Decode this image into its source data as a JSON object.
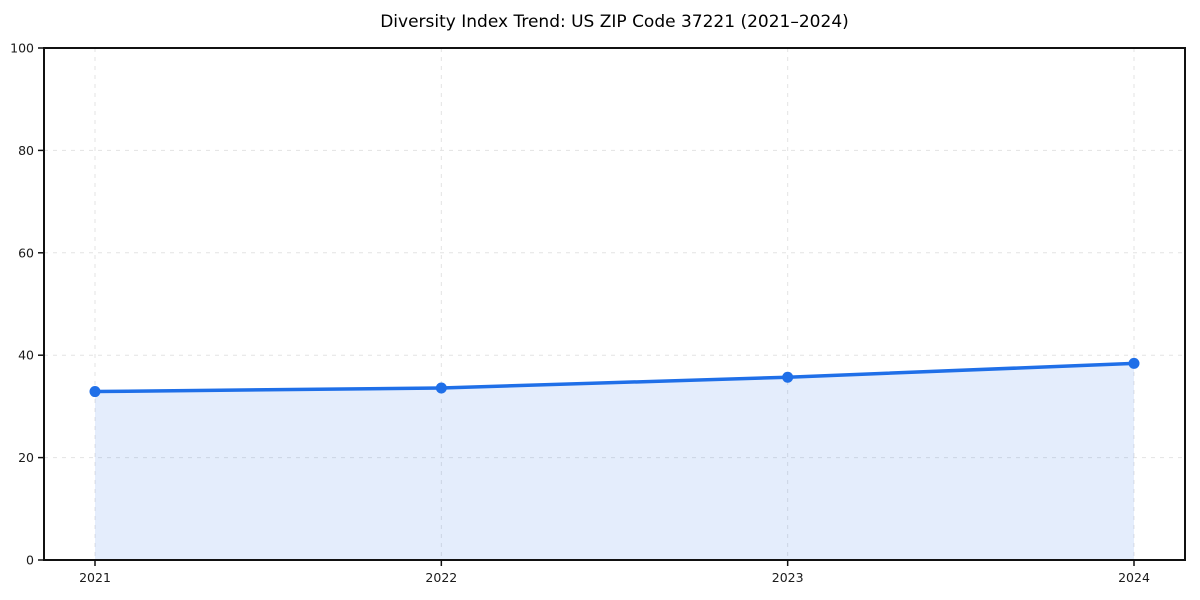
{
  "chart_data": {
    "type": "area",
    "title": "Diversity Index Trend: US ZIP Code 37221 (2021–2024)",
    "categories": [
      "2021",
      "2022",
      "2023",
      "2024"
    ],
    "values": [
      32.9,
      33.6,
      35.7,
      38.4
    ],
    "xlabel": "",
    "ylabel": "",
    "ylim": [
      0,
      100
    ],
    "yticks": [
      0,
      20,
      40,
      60,
      80,
      100
    ],
    "grid": "dashed-both-axes",
    "legend": "none",
    "marker": "circle",
    "area_fill": true,
    "colors": {
      "line": "#1f6fe8",
      "marker": "#1f6fe8",
      "area": "rgba(31, 111, 232, 0.12)",
      "grid": "#e3e3e3",
      "spine": "#111111",
      "tick_text": "#1a1a1a",
      "background": "#ffffff"
    }
  }
}
